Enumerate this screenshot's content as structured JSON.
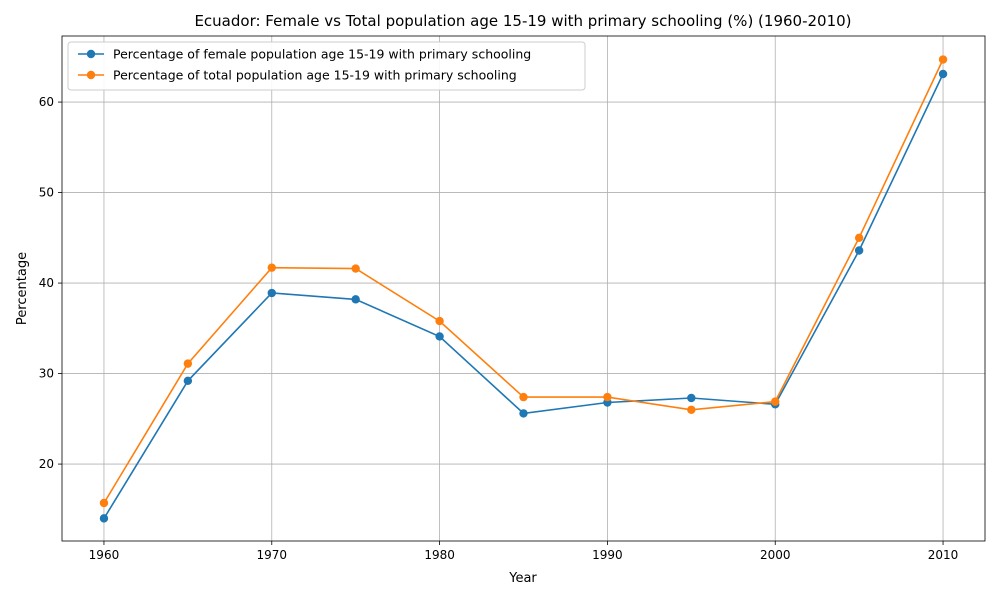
{
  "chart_data": {
    "type": "line",
    "title": "Ecuador: Female vs Total population age 15-19 with primary schooling (%) (1960-2010)",
    "xlabel": "Year",
    "ylabel": "Percentage",
    "x": [
      1960,
      1965,
      1970,
      1975,
      1980,
      1985,
      1990,
      1995,
      2000,
      2005,
      2010
    ],
    "xlim": [
      1957.5,
      2012.5
    ],
    "ylim": [
      11.5,
      67.3
    ],
    "xticks": [
      1960,
      1970,
      1980,
      1990,
      2000,
      2010
    ],
    "yticks": [
      20,
      30,
      40,
      50,
      60
    ],
    "grid": true,
    "legend_position": "top-left",
    "series": [
      {
        "name": "Percentage of female population age 15-19 with primary schooling",
        "color": "#1f77b4",
        "values": [
          14.0,
          29.2,
          38.9,
          38.2,
          34.1,
          25.6,
          26.8,
          27.3,
          26.6,
          43.6,
          63.1
        ]
      },
      {
        "name": "Percentage of total population age 15-19 with primary schooling",
        "color": "#ff7f0e",
        "values": [
          15.7,
          31.1,
          41.7,
          41.6,
          35.8,
          27.4,
          27.4,
          26.0,
          26.9,
          45.0,
          64.7
        ]
      }
    ]
  }
}
